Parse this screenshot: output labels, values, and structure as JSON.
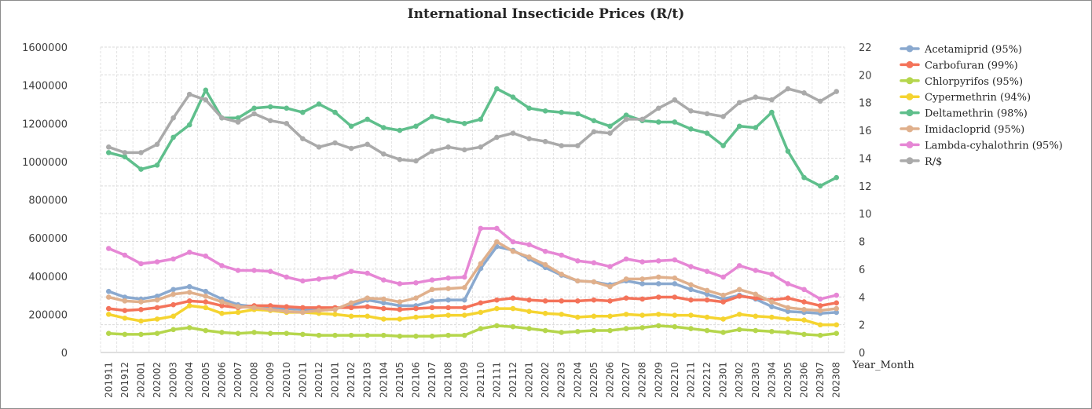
{
  "chart_data": {
    "type": "line",
    "title": "International Insecticide Prices (R/t)",
    "xlabel": "Year_Month",
    "ylabel": "",
    "y2label": "",
    "ylim": [
      0,
      1600000
    ],
    "y_ticks": [
      "0",
      "200000",
      "400000",
      "600000",
      "800000",
      "1000000",
      "1200000",
      "1400000",
      "1600000"
    ],
    "y2lim": [
      0,
      22
    ],
    "y2_ticks": [
      "0",
      "2",
      "4",
      "6",
      "8",
      "10",
      "12",
      "14",
      "16",
      "18",
      "20",
      "22"
    ],
    "grid": true,
    "legend_position": "right",
    "x": [
      "201911",
      "201912",
      "202001",
      "202002",
      "202003",
      "202004",
      "202005",
      "202006",
      "202007",
      "202008",
      "202009",
      "202010",
      "202011",
      "202012",
      "202101",
      "202102",
      "202103",
      "202104",
      "202105",
      "202106",
      "202107",
      "202108",
      "202109",
      "202110",
      "202111",
      "202112",
      "202201",
      "202202",
      "202203",
      "202204",
      "202205",
      "202206",
      "202207",
      "202208",
      "202209",
      "202210",
      "202211",
      "202212",
      "202301",
      "202302",
      "202303",
      "202304",
      "202305",
      "202306",
      "202307",
      "202308"
    ],
    "series": [
      {
        "name": "Acetamiprid (95%)",
        "color": "#8aa9cf",
        "axis": "left",
        "values": [
          320000,
          290000,
          280000,
          295000,
          330000,
          345000,
          320000,
          280000,
          250000,
          240000,
          235000,
          230000,
          225000,
          225000,
          230000,
          245000,
          275000,
          260000,
          245000,
          245000,
          270000,
          275000,
          275000,
          440000,
          555000,
          535000,
          490000,
          445000,
          405000,
          375000,
          370000,
          355000,
          375000,
          360000,
          360000,
          360000,
          330000,
          305000,
          280000,
          300000,
          280000,
          240000,
          215000,
          210000,
          205000,
          210000
        ]
      },
      {
        "name": "Carbofuran (99%)",
        "color": "#f4735a",
        "axis": "left",
        "values": [
          230000,
          220000,
          225000,
          235000,
          250000,
          270000,
          265000,
          245000,
          235000,
          245000,
          245000,
          240000,
          235000,
          235000,
          235000,
          235000,
          240000,
          230000,
          225000,
          230000,
          235000,
          235000,
          235000,
          260000,
          275000,
          285000,
          275000,
          270000,
          270000,
          270000,
          275000,
          270000,
          285000,
          280000,
          290000,
          290000,
          275000,
          275000,
          265000,
          295000,
          285000,
          275000,
          285000,
          265000,
          245000,
          260000
        ]
      },
      {
        "name": "Chlorpyrifos (95%)",
        "color": "#b5d64c",
        "axis": "left",
        "values": [
          100000,
          95000,
          95000,
          100000,
          120000,
          130000,
          115000,
          105000,
          100000,
          105000,
          100000,
          100000,
          95000,
          90000,
          90000,
          90000,
          90000,
          90000,
          85000,
          85000,
          85000,
          90000,
          90000,
          125000,
          140000,
          135000,
          125000,
          115000,
          105000,
          110000,
          115000,
          115000,
          125000,
          130000,
          140000,
          135000,
          125000,
          115000,
          105000,
          120000,
          115000,
          110000,
          105000,
          95000,
          90000,
          100000
        ]
      },
      {
        "name": "Cypermethrin (94%)",
        "color": "#f5d430",
        "axis": "left",
        "values": [
          200000,
          180000,
          165000,
          175000,
          190000,
          245000,
          235000,
          205000,
          210000,
          225000,
          220000,
          210000,
          210000,
          205000,
          200000,
          190000,
          190000,
          175000,
          175000,
          185000,
          190000,
          195000,
          195000,
          210000,
          230000,
          230000,
          215000,
          205000,
          200000,
          185000,
          190000,
          190000,
          200000,
          195000,
          200000,
          195000,
          195000,
          185000,
          175000,
          200000,
          190000,
          185000,
          175000,
          170000,
          145000,
          145000
        ]
      },
      {
        "name": "Deltamethrin (98%)",
        "color": "#5fbf8c",
        "axis": "right",
        "values": [
          14.4,
          14.1,
          13.2,
          13.5,
          15.5,
          16.4,
          18.9,
          16.9,
          16.9,
          17.6,
          17.7,
          17.6,
          17.3,
          17.9,
          17.3,
          16.3,
          16.8,
          16.2,
          16.0,
          16.3,
          17.0,
          16.7,
          16.5,
          16.8,
          19.0,
          18.4,
          17.6,
          17.4,
          17.3,
          17.2,
          16.7,
          16.3,
          17.1,
          16.7,
          16.6,
          16.6,
          16.1,
          15.8,
          14.9,
          16.3,
          16.2,
          17.3,
          14.5,
          12.6,
          12.0,
          12.6
        ]
      },
      {
        "name": "Imidacloprid (95%)",
        "color": "#e0b08c",
        "axis": "left",
        "values": [
          290000,
          270000,
          265000,
          275000,
          305000,
          315000,
          295000,
          265000,
          240000,
          235000,
          225000,
          215000,
          210000,
          220000,
          225000,
          260000,
          285000,
          280000,
          265000,
          285000,
          330000,
          335000,
          340000,
          465000,
          580000,
          530000,
          500000,
          460000,
          410000,
          375000,
          370000,
          345000,
          385000,
          385000,
          395000,
          390000,
          355000,
          325000,
          300000,
          330000,
          305000,
          265000,
          235000,
          225000,
          220000,
          230000
        ]
      },
      {
        "name": "Lambda-cyhalothrin (95%)",
        "color": "#e687d5",
        "axis": "left",
        "values": [
          545000,
          510000,
          465000,
          475000,
          490000,
          525000,
          505000,
          455000,
          430000,
          430000,
          425000,
          395000,
          375000,
          385000,
          395000,
          425000,
          415000,
          380000,
          360000,
          365000,
          380000,
          390000,
          395000,
          650000,
          650000,
          580000,
          565000,
          530000,
          510000,
          480000,
          470000,
          450000,
          490000,
          475000,
          480000,
          485000,
          450000,
          425000,
          395000,
          455000,
          430000,
          410000,
          360000,
          330000,
          280000,
          300000
        ]
      },
      {
        "name": "R/$",
        "color": "#aaaaaa",
        "axis": "right",
        "values": [
          14.8,
          14.4,
          14.4,
          15.0,
          16.9,
          18.6,
          18.2,
          16.9,
          16.6,
          17.2,
          16.7,
          16.5,
          15.4,
          14.8,
          15.1,
          14.7,
          15.0,
          14.3,
          13.9,
          13.8,
          14.5,
          14.8,
          14.6,
          14.8,
          15.5,
          15.8,
          15.4,
          15.2,
          14.9,
          14.9,
          15.9,
          15.8,
          16.8,
          16.8,
          17.6,
          18.2,
          17.4,
          17.2,
          17.0,
          18.0,
          18.4,
          18.2,
          19.0,
          18.7,
          18.1,
          18.8
        ]
      }
    ]
  }
}
